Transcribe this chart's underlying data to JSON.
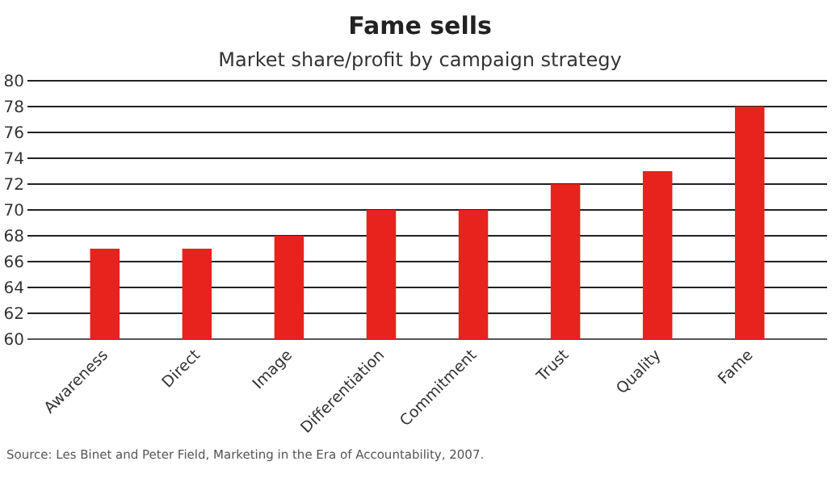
{
  "chart_data": {
    "type": "bar",
    "title": "Fame sells",
    "subtitle": "Market share/profit by campaign strategy",
    "categories": [
      "Awareness",
      "Direct",
      "Image",
      "Differentiation",
      "Commitment",
      "Trust",
      "Quality",
      "Fame"
    ],
    "values": [
      67,
      67,
      68,
      70,
      70,
      72,
      73,
      78
    ],
    "color": "#e8221c",
    "ylim": [
      60,
      80
    ],
    "yticks": [
      60,
      62,
      64,
      66,
      68,
      70,
      72,
      74,
      76,
      78,
      80
    ],
    "grid": "y",
    "annotations": [
      "Source: Les Binet and Peter Field, Marketing in the Era of Accountability, 2007."
    ]
  }
}
